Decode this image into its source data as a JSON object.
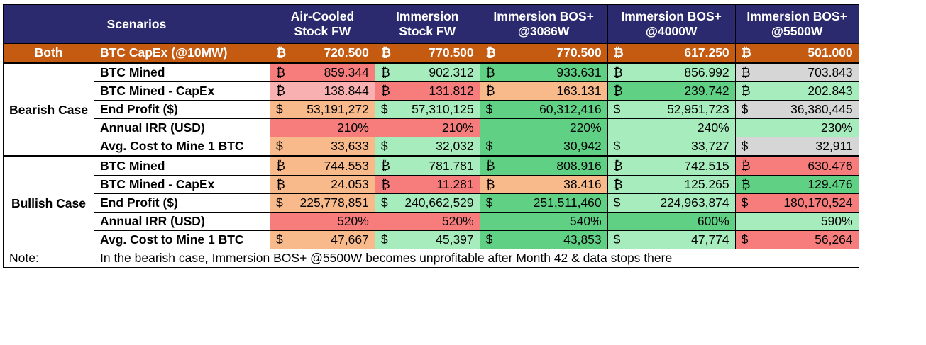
{
  "header": {
    "scenarios": "Scenarios",
    "columns": [
      {
        "line1": "Air-Cooled",
        "line2": "Stock FW"
      },
      {
        "line1": "Immersion",
        "line2": "Stock FW"
      },
      {
        "line1": "Immersion BOS+",
        "line2": "@3086W"
      },
      {
        "line1": "Immersion BOS+",
        "line2": "@4000W"
      },
      {
        "line1": "Immersion BOS+",
        "line2": "@5500W"
      }
    ]
  },
  "both": {
    "label": "Both",
    "metric": "BTC CapEx (@10MW)",
    "cells": [
      {
        "cur": "₿",
        "amt": "720.500"
      },
      {
        "cur": "₿",
        "amt": "770.500"
      },
      {
        "cur": "₿",
        "amt": "770.500"
      },
      {
        "cur": "₿",
        "amt": "617.250"
      },
      {
        "cur": "₿",
        "amt": "501.000"
      }
    ]
  },
  "bearish": {
    "label": "Bearish Case",
    "rows": [
      {
        "metric": "BTC Mined",
        "cells": [
          {
            "cur": "₿",
            "amt": "859.344",
            "color": "red"
          },
          {
            "cur": "₿",
            "amt": "902.312",
            "color": "lgreen"
          },
          {
            "cur": "₿",
            "amt": "933.631",
            "color": "green"
          },
          {
            "cur": "₿",
            "amt": "856.992",
            "color": "lgreen"
          },
          {
            "cur": "₿",
            "amt": "703.843",
            "color": "grey"
          }
        ]
      },
      {
        "metric": "BTC Mined - CapEx",
        "cells": [
          {
            "cur": "₿",
            "amt": "138.844",
            "color": "pink"
          },
          {
            "cur": "₿",
            "amt": "131.812",
            "color": "red"
          },
          {
            "cur": "₿",
            "amt": "163.131",
            "color": "orange"
          },
          {
            "cur": "₿",
            "amt": "239.742",
            "color": "green"
          },
          {
            "cur": "₿",
            "amt": "202.843",
            "color": "lgreen"
          }
        ]
      },
      {
        "metric": "End Profit ($)",
        "cells": [
          {
            "cur": "$",
            "amt": "53,191,272",
            "color": "orange"
          },
          {
            "cur": "$",
            "amt": "57,310,125",
            "color": "lgreen"
          },
          {
            "cur": "$",
            "amt": "60,312,416",
            "color": "green"
          },
          {
            "cur": "$",
            "amt": "52,951,723",
            "color": "lgreen"
          },
          {
            "cur": "$",
            "amt": "36,380,445",
            "color": "grey"
          }
        ]
      },
      {
        "metric": "Annual IRR (USD)",
        "pcts": [
          {
            "value": "210%",
            "color": "red"
          },
          {
            "value": "210%",
            "color": "red"
          },
          {
            "value": "220%",
            "color": "green"
          },
          {
            "value": "240%",
            "color": "lgreen"
          },
          {
            "value": "230%",
            "color": "lgreen"
          }
        ]
      },
      {
        "metric": "Avg. Cost to Mine 1 BTC",
        "cells": [
          {
            "cur": "$",
            "amt": "33,633",
            "color": "orange"
          },
          {
            "cur": "$",
            "amt": "32,032",
            "color": "lgreen"
          },
          {
            "cur": "$",
            "amt": "30,942",
            "color": "green"
          },
          {
            "cur": "$",
            "amt": "33,727",
            "color": "lgreen"
          },
          {
            "cur": "$",
            "amt": "32,911",
            "color": "grey"
          }
        ]
      }
    ]
  },
  "bullish": {
    "label": "Bullish Case",
    "rows": [
      {
        "metric": "BTC Mined",
        "cells": [
          {
            "cur": "₿",
            "amt": "744.553",
            "color": "orange"
          },
          {
            "cur": "₿",
            "amt": "781.781",
            "color": "lgreen"
          },
          {
            "cur": "₿",
            "amt": "808.916",
            "color": "green"
          },
          {
            "cur": "₿",
            "amt": "742.515",
            "color": "lgreen"
          },
          {
            "cur": "₿",
            "amt": "630.476",
            "color": "red"
          }
        ]
      },
      {
        "metric": "BTC Mined - CapEx",
        "cells": [
          {
            "cur": "₿",
            "amt": "24.053",
            "color": "orange"
          },
          {
            "cur": "₿",
            "amt": "11.281",
            "color": "red"
          },
          {
            "cur": "₿",
            "amt": "38.416",
            "color": "orange"
          },
          {
            "cur": "₿",
            "amt": "125.265",
            "color": "lgreen"
          },
          {
            "cur": "₿",
            "amt": "129.476",
            "color": "green"
          }
        ]
      },
      {
        "metric": "End Profit ($)",
        "cells": [
          {
            "cur": "$",
            "amt": "225,778,851",
            "color": "orange"
          },
          {
            "cur": "$",
            "amt": "240,662,529",
            "color": "lgreen"
          },
          {
            "cur": "$",
            "amt": "251,511,460",
            "color": "green"
          },
          {
            "cur": "$",
            "amt": "224,963,874",
            "color": "lgreen"
          },
          {
            "cur": "$",
            "amt": "180,170,524",
            "color": "red"
          }
        ]
      },
      {
        "metric": "Annual IRR (USD)",
        "pcts": [
          {
            "value": "520%",
            "color": "red"
          },
          {
            "value": "520%",
            "color": "red"
          },
          {
            "value": "540%",
            "color": "green"
          },
          {
            "value": "600%",
            "color": "green"
          },
          {
            "value": "590%",
            "color": "lgreen"
          }
        ]
      },
      {
        "metric": "Avg. Cost to Mine 1 BTC",
        "cells": [
          {
            "cur": "$",
            "amt": "47,667",
            "color": "orange"
          },
          {
            "cur": "$",
            "amt": "45,397",
            "color": "lgreen"
          },
          {
            "cur": "$",
            "amt": "43,853",
            "color": "green"
          },
          {
            "cur": "$",
            "amt": "47,774",
            "color": "lgreen"
          },
          {
            "cur": "$",
            "amt": "56,264",
            "color": "red"
          }
        ]
      }
    ]
  },
  "note": {
    "label": "Note:",
    "text": "In the bearish case, Immersion BOS+ @5500W becomes unprofitable after Month 42 & data stops there"
  }
}
